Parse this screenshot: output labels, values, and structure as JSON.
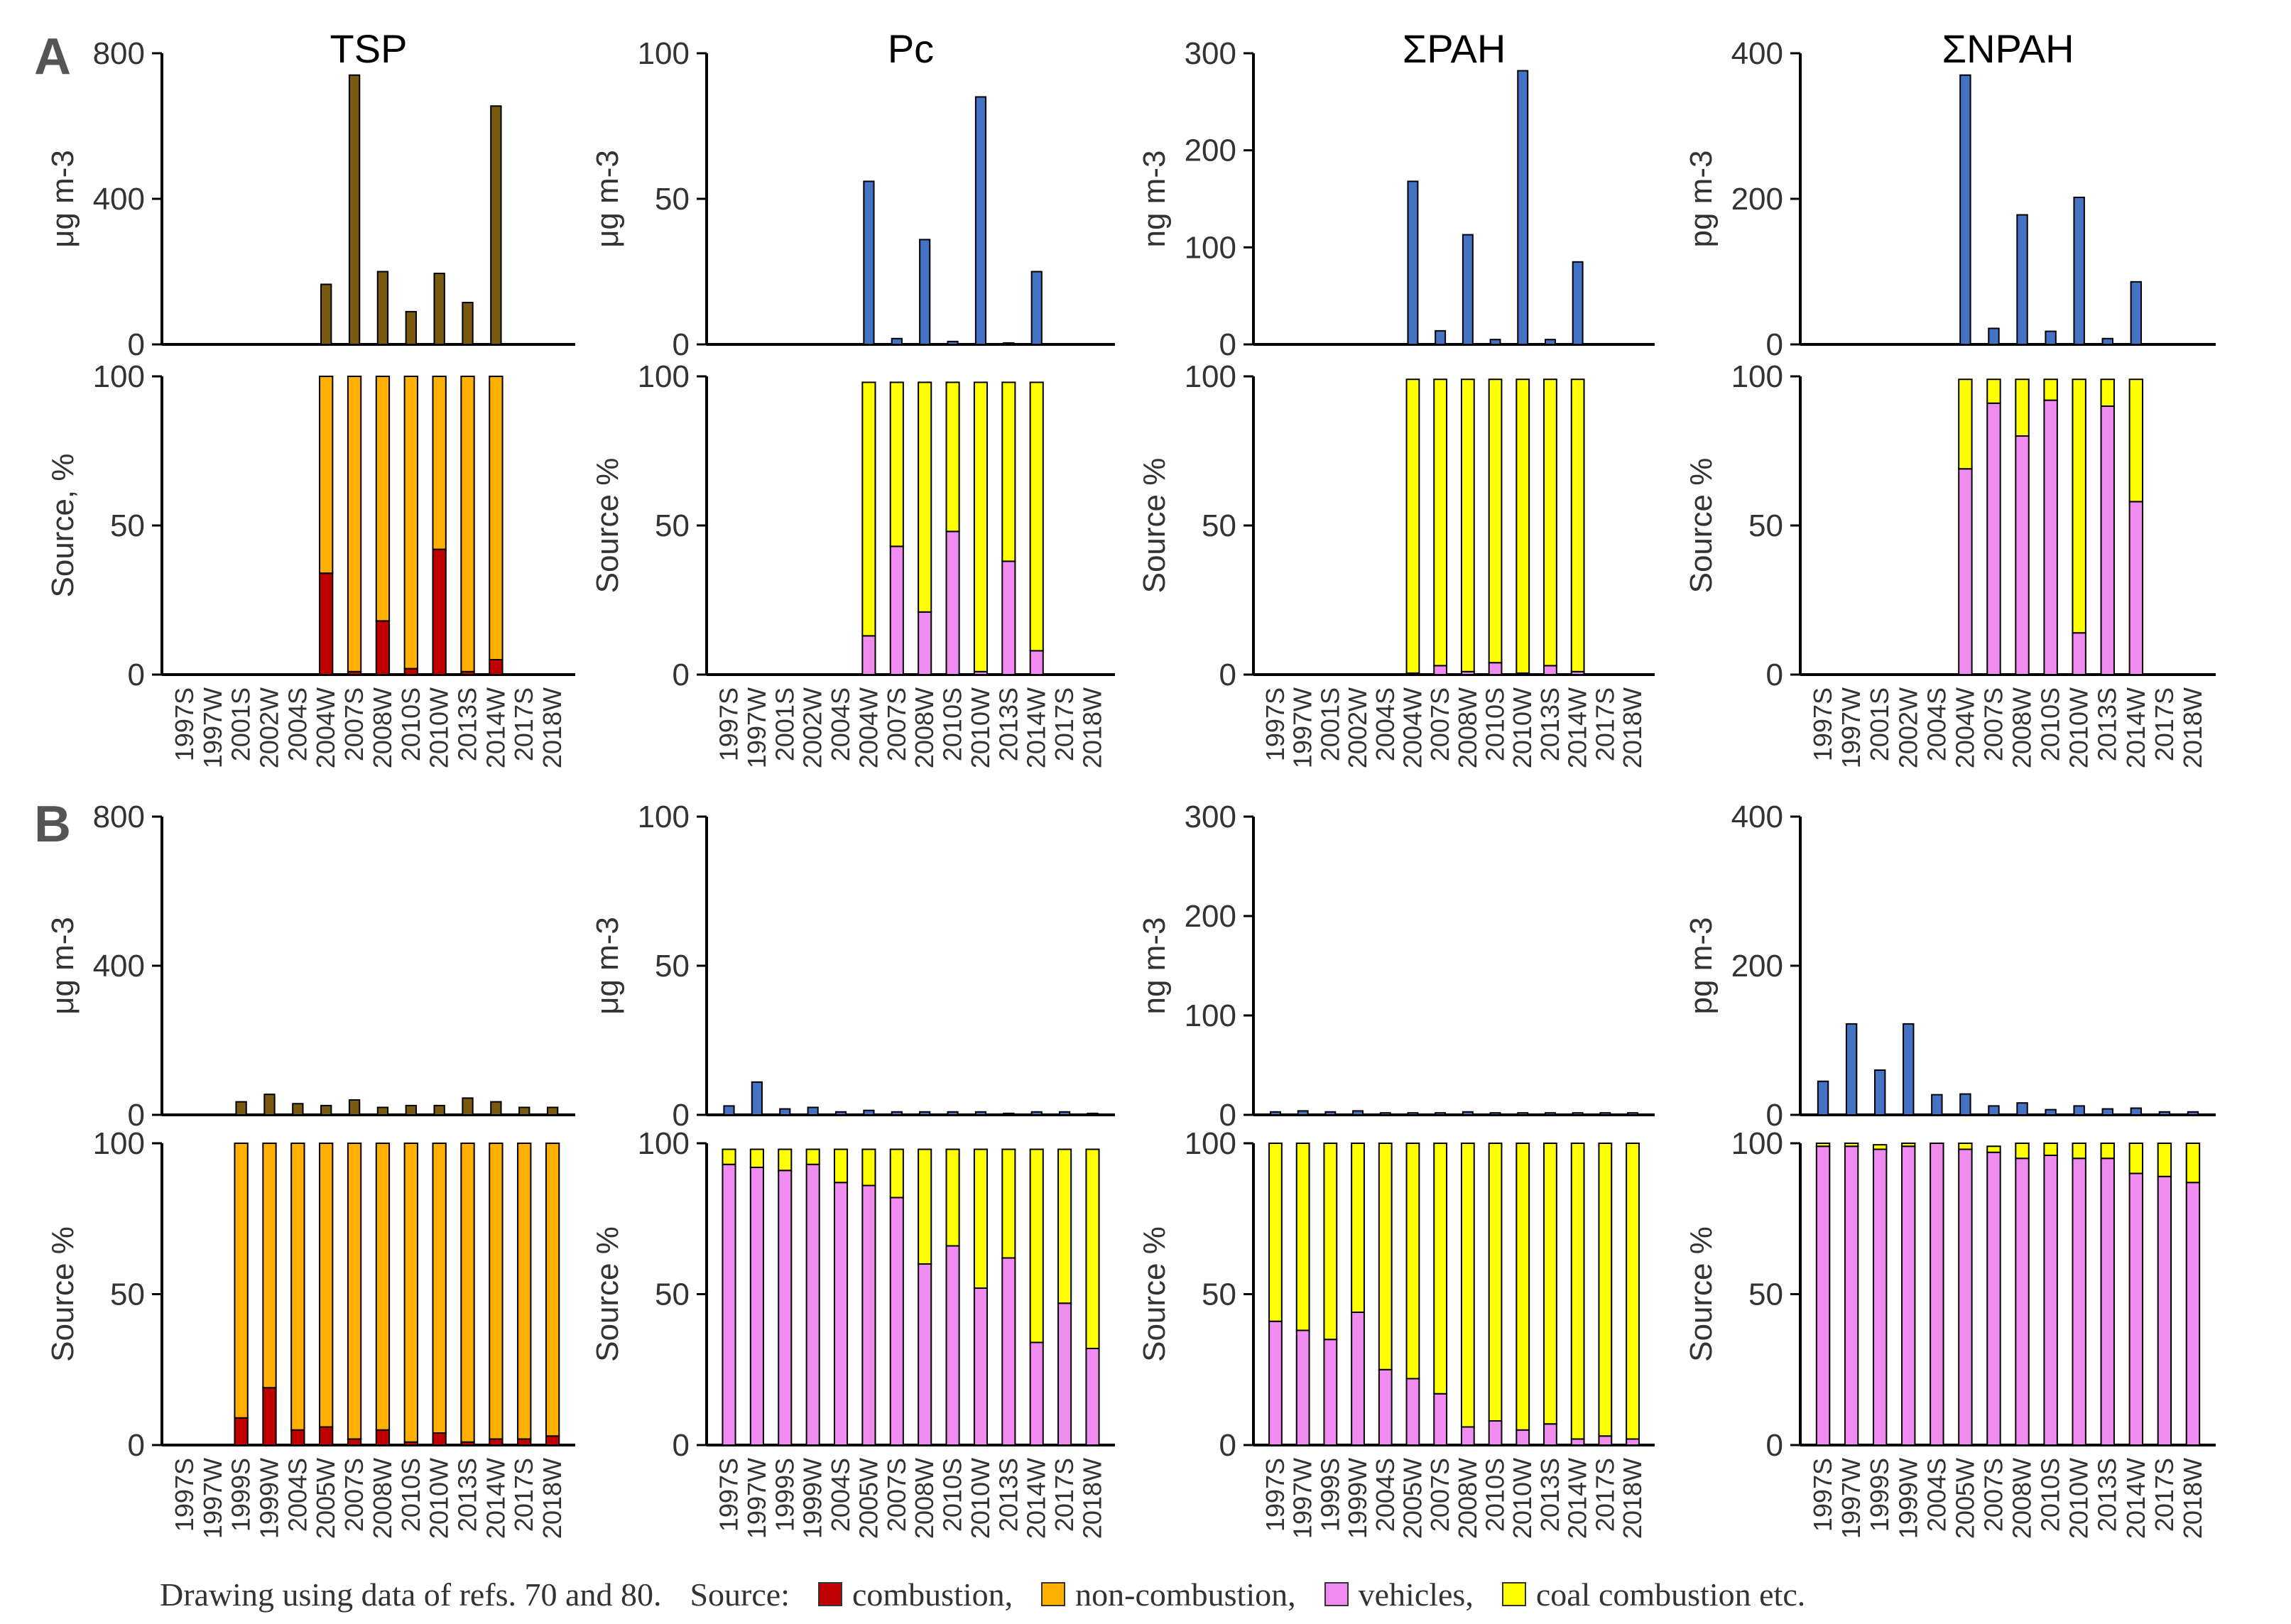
{
  "panel_labels": [
    "A",
    "B"
  ],
  "footer": {
    "note": "Drawing using data of refs. 70 and 80.",
    "source_label": "Source:",
    "legend": [
      {
        "label": "combustion,",
        "color": "#c00000"
      },
      {
        "label": "non-combustion,",
        "color": "#ffb000"
      },
      {
        "label": "vehicles,",
        "color": "#f08cf0"
      },
      {
        "label": "coal combustion etc.",
        "color": "#ffff00"
      }
    ]
  },
  "chart_data": [
    {
      "id": "A-TSP-conc",
      "type": "bar",
      "panel": "A",
      "title": "TSP",
      "ylabel": "μg m-3",
      "ylim": [
        0,
        800
      ],
      "yticks": [
        0,
        400,
        800
      ],
      "categories": [
        "1997S",
        "1997W",
        "2001S",
        "2002W",
        "2004S",
        "2004W",
        "2007S",
        "2008W",
        "2010S",
        "2010W",
        "2013S",
        "2014W",
        "2017S",
        "2018W"
      ],
      "values": [
        0,
        0,
        0,
        0,
        0,
        165,
        740,
        200,
        90,
        195,
        115,
        655,
        0,
        0
      ],
      "bar_color": "#7a5a10"
    },
    {
      "id": "A-TSP-src",
      "type": "bar",
      "stacked": true,
      "panel": "A",
      "ylabel": "Source, %",
      "ylim": [
        0,
        100
      ],
      "yticks": [
        0,
        50,
        100
      ],
      "categories": [
        "1997S",
        "1997W",
        "2001S",
        "2002W",
        "2004S",
        "2004W",
        "2007S",
        "2008W",
        "2010S",
        "2010W",
        "2013S",
        "2014W",
        "2017S",
        "2018W"
      ],
      "series": [
        {
          "name": "combustion",
          "color": "#c00000",
          "values": [
            0,
            0,
            0,
            0,
            0,
            34,
            1,
            18,
            2,
            42,
            1,
            5,
            0,
            0
          ]
        },
        {
          "name": "non-combustion",
          "color": "#ffb000",
          "values": [
            0,
            0,
            0,
            0,
            0,
            66,
            99,
            82,
            98,
            58,
            99,
            95,
            0,
            0
          ]
        }
      ]
    },
    {
      "id": "A-Pc-conc",
      "type": "bar",
      "panel": "A",
      "title": "Pc",
      "ylabel": "μg m-3",
      "ylim": [
        0,
        100
      ],
      "yticks": [
        0,
        50,
        100
      ],
      "categories": [
        "1997S",
        "1997W",
        "2001S",
        "2002W",
        "2004S",
        "2004W",
        "2007S",
        "2008W",
        "2010S",
        "2010W",
        "2013S",
        "2014W",
        "2017S",
        "2018W"
      ],
      "values": [
        0,
        0,
        0,
        0,
        0,
        56,
        2,
        36,
        1,
        85,
        0.5,
        25,
        0,
        0
      ],
      "bar_color": "#4472c4"
    },
    {
      "id": "A-Pc-src",
      "type": "bar",
      "stacked": true,
      "panel": "A",
      "ylabel": "Source %",
      "ylim": [
        0,
        100
      ],
      "yticks": [
        0,
        50,
        100
      ],
      "categories": [
        "1997S",
        "1997W",
        "2001S",
        "2002W",
        "2004S",
        "2004W",
        "2007S",
        "2008W",
        "2010S",
        "2010W",
        "2013S",
        "2014W",
        "2017S",
        "2018W"
      ],
      "series": [
        {
          "name": "vehicles",
          "color": "#f08cf0",
          "values": [
            0,
            0,
            0,
            0,
            0,
            13,
            43,
            21,
            48,
            1,
            38,
            8,
            0,
            0
          ]
        },
        {
          "name": "coal combustion etc.",
          "color": "#ffff00",
          "values": [
            0,
            0,
            0,
            0,
            0,
            85,
            55,
            77,
            50,
            97,
            60,
            90,
            0,
            0
          ]
        }
      ]
    },
    {
      "id": "A-PAH-conc",
      "type": "bar",
      "panel": "A",
      "title": "ΣPAH",
      "ylabel": "ng m-3",
      "ylim": [
        0,
        300
      ],
      "yticks": [
        0,
        100,
        200,
        300
      ],
      "categories": [
        "1997S",
        "1997W",
        "2001S",
        "2002W",
        "2004S",
        "2004W",
        "2007S",
        "2008W",
        "2010S",
        "2010W",
        "2013S",
        "2014W",
        "2017S",
        "2018W"
      ],
      "values": [
        0,
        0,
        0,
        0,
        0,
        168,
        14,
        113,
        5,
        282,
        5,
        85,
        0,
        0
      ],
      "bar_color": "#4472c4"
    },
    {
      "id": "A-PAH-src",
      "type": "bar",
      "stacked": true,
      "panel": "A",
      "ylabel": "Source %",
      "ylim": [
        0,
        100
      ],
      "yticks": [
        0,
        50,
        100
      ],
      "categories": [
        "1997S",
        "1997W",
        "2001S",
        "2002W",
        "2004S",
        "2004W",
        "2007S",
        "2008W",
        "2010S",
        "2010W",
        "2013S",
        "2014W",
        "2017S",
        "2018W"
      ],
      "series": [
        {
          "name": "vehicles",
          "color": "#f08cf0",
          "values": [
            0,
            0,
            0,
            0,
            0,
            0.5,
            3,
            1,
            4,
            0.5,
            3,
            1,
            0,
            0
          ]
        },
        {
          "name": "coal combustion etc.",
          "color": "#ffff00",
          "values": [
            0,
            0,
            0,
            0,
            0,
            98.5,
            96,
            98,
            95,
            98.5,
            96,
            98,
            0,
            0
          ]
        }
      ]
    },
    {
      "id": "A-NPAH-conc",
      "type": "bar",
      "panel": "A",
      "title": "ΣNPAH",
      "ylabel": "pg m-3",
      "ylim": [
        0,
        400
      ],
      "yticks": [
        0,
        200,
        400
      ],
      "categories": [
        "1997S",
        "1997W",
        "2001S",
        "2002W",
        "2004S",
        "2004W",
        "2007S",
        "2008W",
        "2010S",
        "2010W",
        "2013S",
        "2014W",
        "2017S",
        "2018W"
      ],
      "values": [
        0,
        0,
        0,
        0,
        0,
        370,
        22,
        178,
        18,
        202,
        8,
        86,
        0,
        0
      ],
      "bar_color": "#4472c4"
    },
    {
      "id": "A-NPAH-src",
      "type": "bar",
      "stacked": true,
      "panel": "A",
      "ylabel": "Source %",
      "ylim": [
        0,
        100
      ],
      "yticks": [
        0,
        50,
        100
      ],
      "categories": [
        "1997S",
        "1997W",
        "2001S",
        "2002W",
        "2004S",
        "2004W",
        "2007S",
        "2008W",
        "2010S",
        "2010W",
        "2013S",
        "2014W",
        "2017S",
        "2018W"
      ],
      "series": [
        {
          "name": "vehicles",
          "color": "#f08cf0",
          "values": [
            0,
            0,
            0,
            0,
            0,
            69,
            91,
            80,
            92,
            14,
            90,
            58,
            0,
            0
          ]
        },
        {
          "name": "coal combustion etc.",
          "color": "#ffff00",
          "values": [
            0,
            0,
            0,
            0,
            0,
            30,
            8,
            19,
            7,
            85,
            9,
            41,
            0,
            0
          ]
        }
      ]
    },
    {
      "id": "B-TSP-conc",
      "type": "bar",
      "panel": "B",
      "ylabel": "μg m-3",
      "ylim": [
        0,
        800
      ],
      "yticks": [
        0,
        400,
        800
      ],
      "categories": [
        "1997S",
        "1997W",
        "1999S",
        "1999W",
        "2004S",
        "2005W",
        "2007S",
        "2008W",
        "2010S",
        "2010W",
        "2013S",
        "2014W",
        "2017S",
        "2018W"
      ],
      "values": [
        0,
        0,
        35,
        55,
        30,
        25,
        40,
        20,
        25,
        25,
        45,
        35,
        20,
        20
      ],
      "bar_color": "#7a5a10"
    },
    {
      "id": "B-TSP-src",
      "type": "bar",
      "stacked": true,
      "panel": "B",
      "ylabel": "Source %",
      "ylim": [
        0,
        100
      ],
      "yticks": [
        0,
        50,
        100
      ],
      "categories": [
        "1997S",
        "1997W",
        "1999S",
        "1999W",
        "2004S",
        "2005W",
        "2007S",
        "2008W",
        "2010S",
        "2010W",
        "2013S",
        "2014W",
        "2017S",
        "2018W"
      ],
      "series": [
        {
          "name": "combustion",
          "color": "#c00000",
          "values": [
            0,
            0,
            9,
            19,
            5,
            6,
            2,
            5,
            1,
            4,
            1,
            2,
            2,
            3
          ]
        },
        {
          "name": "non-combustion",
          "color": "#ffb000",
          "values": [
            0,
            0,
            91,
            81,
            95,
            94,
            98,
            95,
            99,
            96,
            99,
            98,
            98,
            97
          ]
        }
      ]
    },
    {
      "id": "B-Pc-conc",
      "type": "bar",
      "panel": "B",
      "ylabel": "μg m-3",
      "ylim": [
        0,
        100
      ],
      "yticks": [
        0,
        50,
        100
      ],
      "categories": [
        "1997S",
        "1997W",
        "1999S",
        "1999W",
        "2004S",
        "2005W",
        "2007S",
        "2008W",
        "2010S",
        "2010W",
        "2013S",
        "2014W",
        "2017S",
        "2018W"
      ],
      "values": [
        3,
        11,
        2,
        2.5,
        1,
        1.5,
        1,
        1,
        1,
        1,
        0.5,
        1,
        1,
        0.5
      ],
      "bar_color": "#4472c4"
    },
    {
      "id": "B-Pc-src",
      "type": "bar",
      "stacked": true,
      "panel": "B",
      "ylabel": "Source %",
      "ylim": [
        0,
        100
      ],
      "yticks": [
        0,
        50,
        100
      ],
      "categories": [
        "1997S",
        "1997W",
        "1999S",
        "1999W",
        "2004S",
        "2005W",
        "2007S",
        "2008W",
        "2010S",
        "2010W",
        "2013S",
        "2014W",
        "2017S",
        "2018W"
      ],
      "series": [
        {
          "name": "vehicles",
          "color": "#f08cf0",
          "values": [
            93,
            92,
            91,
            93,
            87,
            86,
            82,
            60,
            66,
            52,
            62,
            34,
            47,
            32
          ]
        },
        {
          "name": "coal combustion etc.",
          "color": "#ffff00",
          "values": [
            5,
            6,
            7,
            5,
            11,
            12,
            16,
            38,
            32,
            46,
            36,
            64,
            51,
            66
          ]
        }
      ]
    },
    {
      "id": "B-PAH-conc",
      "type": "bar",
      "panel": "B",
      "ylabel": "ng m-3",
      "ylim": [
        0,
        300
      ],
      "yticks": [
        0,
        100,
        200,
        300
      ],
      "categories": [
        "1997S",
        "1997W",
        "1999S",
        "1999W",
        "2004S",
        "2005W",
        "2007S",
        "2008W",
        "2010S",
        "2010W",
        "2013S",
        "2014W",
        "2017S",
        "2018W"
      ],
      "values": [
        3,
        4,
        3,
        4,
        2,
        2,
        2,
        3,
        2,
        2,
        2,
        2,
        2,
        2
      ],
      "bar_color": "#4472c4"
    },
    {
      "id": "B-PAH-src",
      "type": "bar",
      "stacked": true,
      "panel": "B",
      "ylabel": "Source %",
      "ylim": [
        0,
        100
      ],
      "yticks": [
        0,
        50,
        100
      ],
      "categories": [
        "1997S",
        "1997W",
        "1999S",
        "1999W",
        "2004S",
        "2005W",
        "2007S",
        "2008W",
        "2010S",
        "2010W",
        "2013S",
        "2014W",
        "2017S",
        "2018W"
      ],
      "series": [
        {
          "name": "vehicles",
          "color": "#f08cf0",
          "values": [
            41,
            38,
            35,
            44,
            25,
            22,
            17,
            6,
            8,
            5,
            7,
            2,
            3,
            2
          ]
        },
        {
          "name": "coal combustion etc.",
          "color": "#ffff00",
          "values": [
            59,
            62,
            65,
            56,
            75,
            78,
            83,
            94,
            92,
            95,
            93,
            98,
            97,
            98
          ]
        }
      ]
    },
    {
      "id": "B-NPAH-conc",
      "type": "bar",
      "panel": "B",
      "ylabel": "pg m-3",
      "ylim": [
        0,
        400
      ],
      "yticks": [
        0,
        200,
        400
      ],
      "categories": [
        "1997S",
        "1997W",
        "1999S",
        "1999W",
        "2004S",
        "2005W",
        "2007S",
        "2008W",
        "2010S",
        "2010W",
        "2013S",
        "2014W",
        "2017S",
        "2018W"
      ],
      "values": [
        45,
        122,
        60,
        122,
        27,
        28,
        12,
        16,
        7,
        12,
        8,
        9,
        4,
        4
      ],
      "bar_color": "#4472c4"
    },
    {
      "id": "B-NPAH-src",
      "type": "bar",
      "stacked": true,
      "panel": "B",
      "ylabel": "Source %",
      "ylim": [
        0,
        100
      ],
      "yticks": [
        0,
        50,
        100
      ],
      "categories": [
        "1997S",
        "1997W",
        "1999S",
        "1999W",
        "2004S",
        "2005W",
        "2007S",
        "2008W",
        "2010S",
        "2010W",
        "2013S",
        "2014W",
        "2017S",
        "2018W"
      ],
      "series": [
        {
          "name": "vehicles",
          "color": "#f08cf0",
          "values": [
            99,
            99,
            98,
            99,
            100,
            98,
            97,
            95,
            96,
            95,
            95,
            90,
            89,
            87
          ]
        },
        {
          "name": "coal combustion etc.",
          "color": "#ffff00",
          "values": [
            1,
            1,
            1.5,
            1,
            0,
            2,
            2,
            5,
            4,
            5,
            5,
            10,
            11,
            13
          ]
        }
      ]
    }
  ]
}
